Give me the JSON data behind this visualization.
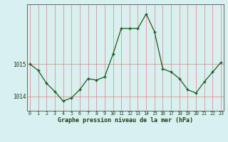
{
  "x": [
    0,
    1,
    2,
    3,
    4,
    5,
    6,
    7,
    8,
    9,
    10,
    11,
    12,
    13,
    14,
    15,
    16,
    17,
    18,
    19,
    20,
    21,
    22,
    23
  ],
  "y": [
    1015.0,
    1014.8,
    1014.4,
    1014.15,
    1013.85,
    1013.95,
    1014.2,
    1014.55,
    1014.5,
    1014.6,
    1015.3,
    1016.1,
    1016.1,
    1016.1,
    1016.55,
    1016.0,
    1014.85,
    1014.75,
    1014.55,
    1014.2,
    1014.1,
    1014.45,
    1014.75,
    1015.05
  ],
  "yticks": [
    1014,
    1015
  ],
  "xticks": [
    0,
    1,
    2,
    3,
    4,
    5,
    6,
    7,
    8,
    9,
    10,
    11,
    12,
    13,
    14,
    15,
    16,
    17,
    18,
    19,
    20,
    21,
    22,
    23
  ],
  "xlabel": "Graphe pression niveau de la mer (hPa)",
  "line_color": "#1a5c1a",
  "marker_color": "#1a5c1a",
  "bg_color": "#d8f0f0",
  "grid_color_x": "#e08080",
  "grid_color_y": "#e08080",
  "axis_color": "#666666",
  "ylim_min": 1013.55,
  "ylim_max": 1016.85
}
